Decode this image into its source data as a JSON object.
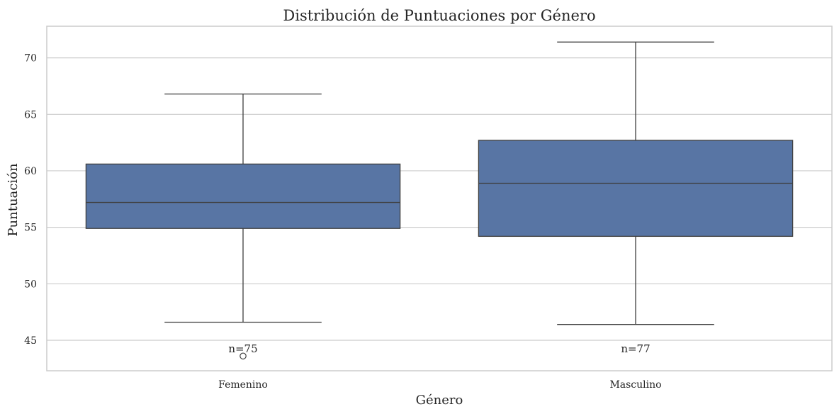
{
  "chart_data": {
    "type": "box",
    "title": "Distribución de Puntuaciones por Género",
    "xlabel": "Género",
    "ylabel": "Puntuación",
    "ylim": [
      42.3,
      72.8
    ],
    "yticks": [
      45,
      50,
      55,
      60,
      65,
      70
    ],
    "grid": true,
    "color": "#5875a4",
    "edge_color": "#3f3f3f",
    "categories": [
      "Femenino",
      "Masculino"
    ],
    "boxes": [
      {
        "category": "Femenino",
        "whisker_low": 46.6,
        "q1": 54.9,
        "median": 57.2,
        "q3": 60.6,
        "whisker_high": 66.8,
        "outliers": [
          43.6
        ],
        "annotation": "n=75"
      },
      {
        "category": "Masculino",
        "whisker_low": 46.4,
        "q1": 54.2,
        "median": 58.9,
        "q3": 62.7,
        "whisker_high": 71.4,
        "outliers": [],
        "annotation": "n=77"
      }
    ]
  }
}
